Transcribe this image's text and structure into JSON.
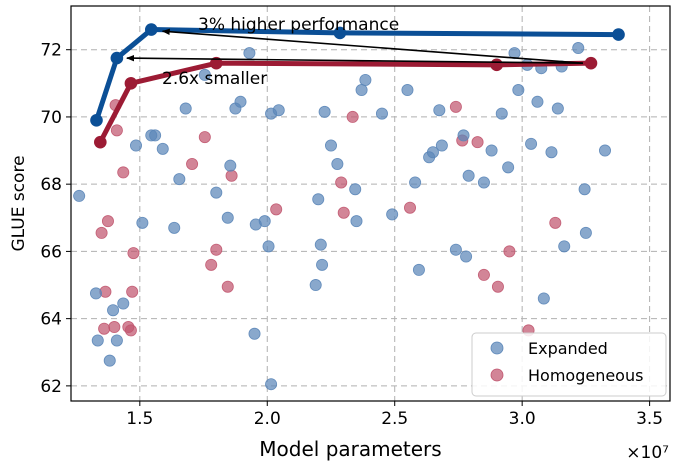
{
  "chart_data": {
    "type": "scatter",
    "xlabel": "Model parameters",
    "ylabel": "GLUE score",
    "x_multiplier_label": "×10⁷",
    "xlim": [
      12300000,
      35800000
    ],
    "ylim": [
      61.55,
      73.3
    ],
    "xticks": [
      15000000,
      20000000,
      25000000,
      30000000,
      35000000
    ],
    "xtick_labels": [
      "1.5",
      "2.0",
      "2.5",
      "3.0",
      "3.5"
    ],
    "yticks": [
      62,
      64,
      66,
      68,
      70,
      72
    ],
    "ytick_labels": [
      "62",
      "64",
      "66",
      "68",
      "70",
      "72"
    ],
    "grid": true,
    "legend_position": "bottom-right",
    "colors": {
      "expanded_point": "#5b86b8",
      "expanded_line": "#0b4f96",
      "homogeneous_point": "#c1566f",
      "homogeneous_line": "#9c1b34"
    },
    "series": [
      {
        "name": "Expanded",
        "x": [
          12620000,
          13280000,
          13350000,
          13820000,
          13950000,
          14100000,
          14350000,
          14850000,
          15100000,
          15450000,
          15600000,
          15900000,
          16350000,
          16550000,
          16800000,
          17550000,
          18000000,
          18450000,
          18750000,
          18950000,
          18550000,
          19300000,
          19500000,
          19550000,
          19900000,
          20050000,
          20150000,
          20150000,
          20450000,
          21900000,
          22000000,
          22100000,
          22150000,
          22250000,
          22500000,
          22750000,
          23450000,
          23500000,
          23700000,
          23850000,
          24500000,
          24900000,
          25500000,
          25800000,
          25950000,
          26350000,
          26500000,
          26750000,
          26850000,
          27400000,
          27700000,
          27800000,
          27900000,
          28500000,
          28800000,
          29200000,
          29450000,
          29700000,
          29850000,
          30200000,
          30350000,
          30600000,
          30750000,
          30850000,
          31150000,
          31400000,
          31550000,
          31650000,
          32200000,
          32450000,
          32500000,
          33250000
        ],
        "y": [
          67.65,
          64.75,
          63.35,
          62.75,
          64.25,
          63.35,
          64.45,
          69.15,
          66.85,
          69.45,
          69.45,
          69.05,
          66.7,
          68.15,
          70.25,
          71.25,
          67.75,
          67.0,
          70.25,
          70.45,
          68.55,
          71.9,
          63.55,
          66.8,
          66.9,
          66.15,
          62.05,
          70.1,
          70.2,
          65.0,
          67.55,
          66.2,
          65.6,
          70.15,
          69.15,
          68.6,
          67.85,
          66.9,
          70.8,
          71.1,
          70.1,
          67.1,
          70.8,
          68.05,
          65.45,
          68.8,
          68.95,
          70.2,
          69.15,
          66.05,
          69.45,
          65.85,
          68.25,
          68.05,
          69.0,
          70.1,
          68.5,
          71.9,
          70.8,
          71.55,
          69.2,
          70.45,
          71.45,
          64.6,
          68.95,
          70.25,
          71.5,
          66.15,
          72.05,
          67.85,
          66.55,
          69.0
        ],
        "frontier": {
          "x": [
            13300000,
            14100000,
            15450000,
            22850000,
            33780000
          ],
          "y": [
            69.9,
            71.75,
            72.6,
            72.5,
            72.45
          ]
        }
      },
      {
        "name": "Homogeneous",
        "x": [
          13500000,
          13600000,
          13650000,
          13750000,
          14000000,
          14050000,
          14100000,
          14350000,
          14550000,
          14650000,
          14700000,
          14750000,
          17050000,
          17550000,
          17800000,
          18000000,
          18450000,
          18600000,
          20350000,
          22900000,
          23000000,
          23350000,
          25600000,
          27400000,
          27650000,
          28250000,
          28500000,
          29050000,
          29500000,
          30250000,
          31300000
        ],
        "y": [
          66.55,
          63.7,
          64.8,
          66.9,
          63.75,
          70.35,
          69.6,
          68.35,
          63.75,
          63.65,
          64.8,
          65.95,
          68.6,
          69.4,
          65.6,
          66.05,
          64.95,
          68.25,
          67.25,
          68.05,
          67.15,
          70.0,
          67.3,
          70.3,
          69.3,
          69.25,
          65.3,
          64.95,
          66.0,
          63.65,
          66.85
        ],
        "frontier": {
          "x": [
            13450000,
            14650000,
            18000000,
            29000000,
            32700000
          ],
          "y": [
            69.25,
            71.0,
            71.6,
            71.55,
            71.6
          ]
        }
      }
    ],
    "annotations": [
      {
        "text": "3% higher performance",
        "from": {
          "x": 32700000,
          "y": 71.6
        },
        "to": {
          "x": 15500000,
          "y": 72.55
        }
      },
      {
        "text": "2.6x smaller",
        "from": {
          "x": 32700000,
          "y": 71.6
        },
        "to": {
          "x": 14100000,
          "y": 71.75
        }
      }
    ]
  }
}
